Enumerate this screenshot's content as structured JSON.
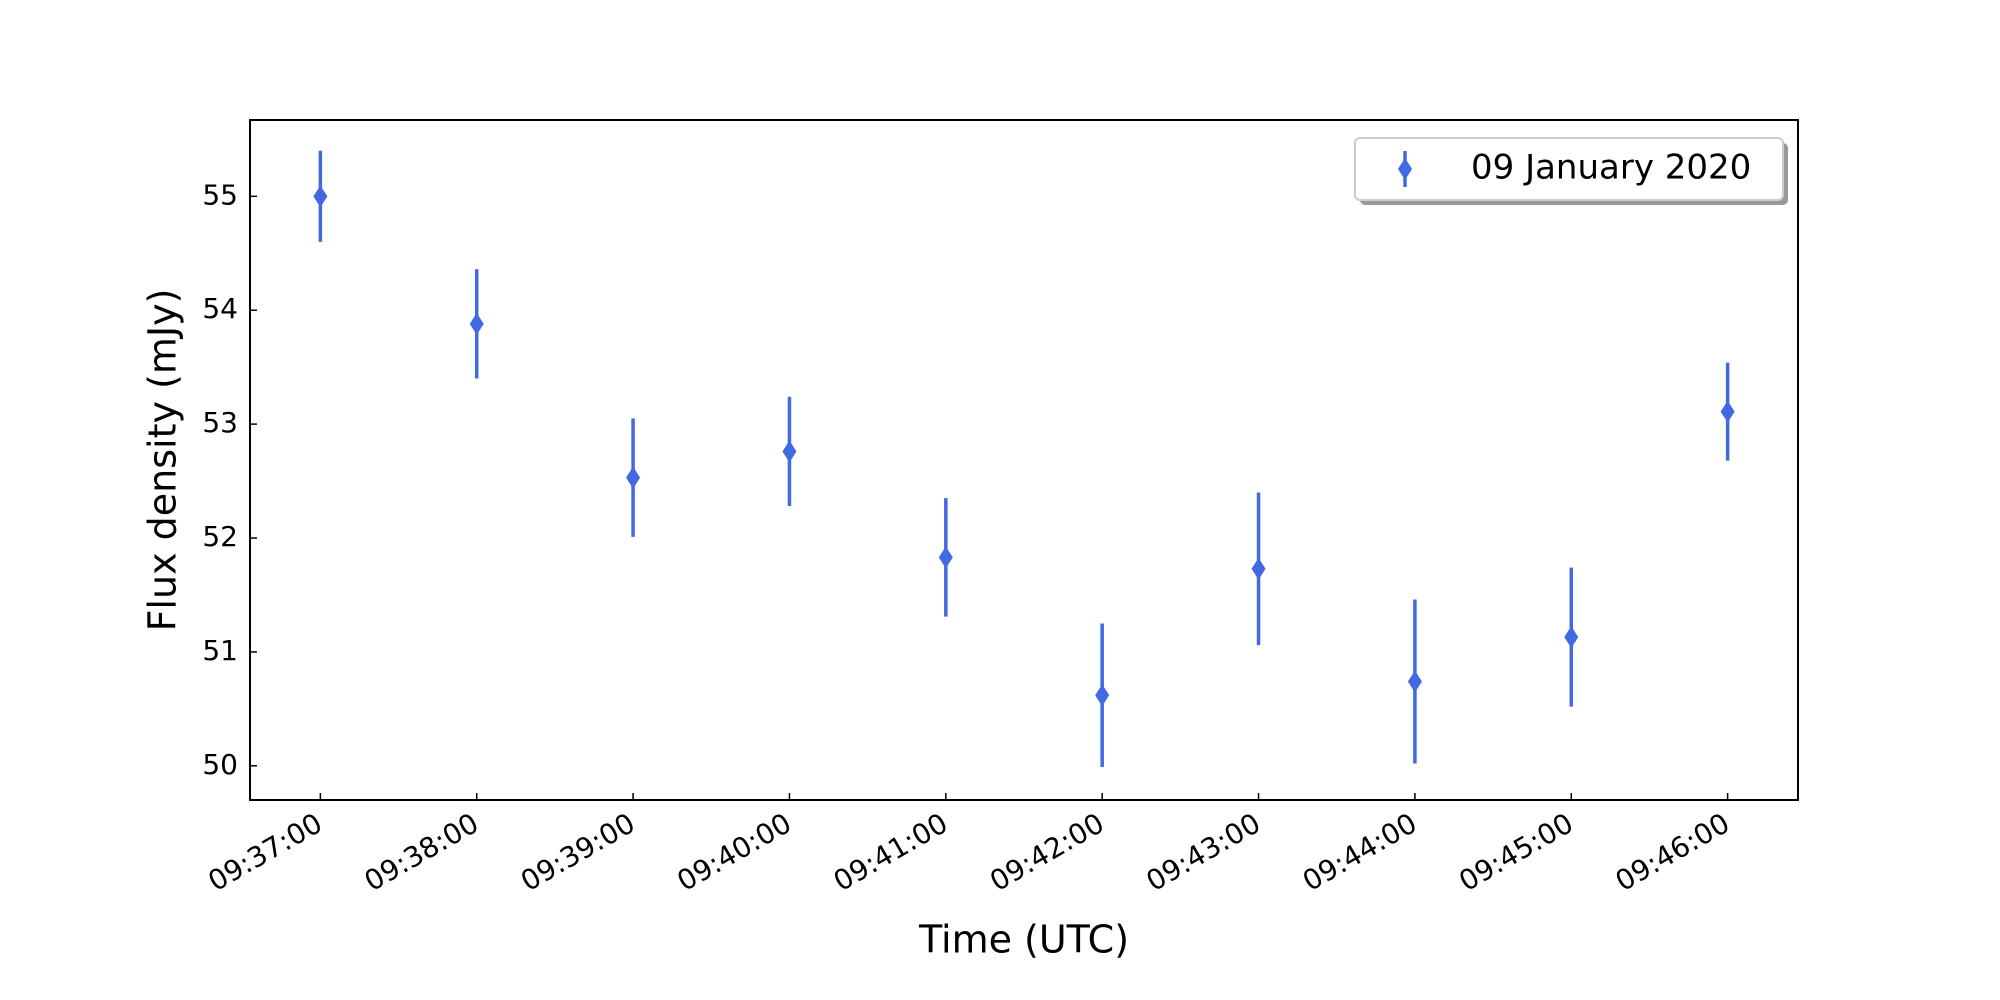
{
  "chart_data": {
    "type": "errorbar",
    "xlabel": "Time (UTC)",
    "ylabel": "Flux density (mJy)",
    "categories": [
      "09:37:00",
      "09:38:00",
      "09:39:00",
      "09:40:00",
      "09:41:00",
      "09:42:00",
      "09:43:00",
      "09:44:00",
      "09:45:00",
      "09:46:00"
    ],
    "series": [
      {
        "name": "09 January 2020",
        "color": "#4169e1",
        "values": [
          55.0,
          53.88,
          52.53,
          52.76,
          51.83,
          50.62,
          51.73,
          50.74,
          51.13,
          53.11
        ],
        "errors": [
          0.4,
          0.48,
          0.52,
          0.48,
          0.52,
          0.63,
          0.67,
          0.72,
          0.61,
          0.43
        ]
      }
    ],
    "ylim": [
      49.7,
      55.67
    ],
    "yticks": [
      50,
      51,
      52,
      53,
      54,
      55
    ],
    "legend": "upper right",
    "grid": false
  }
}
